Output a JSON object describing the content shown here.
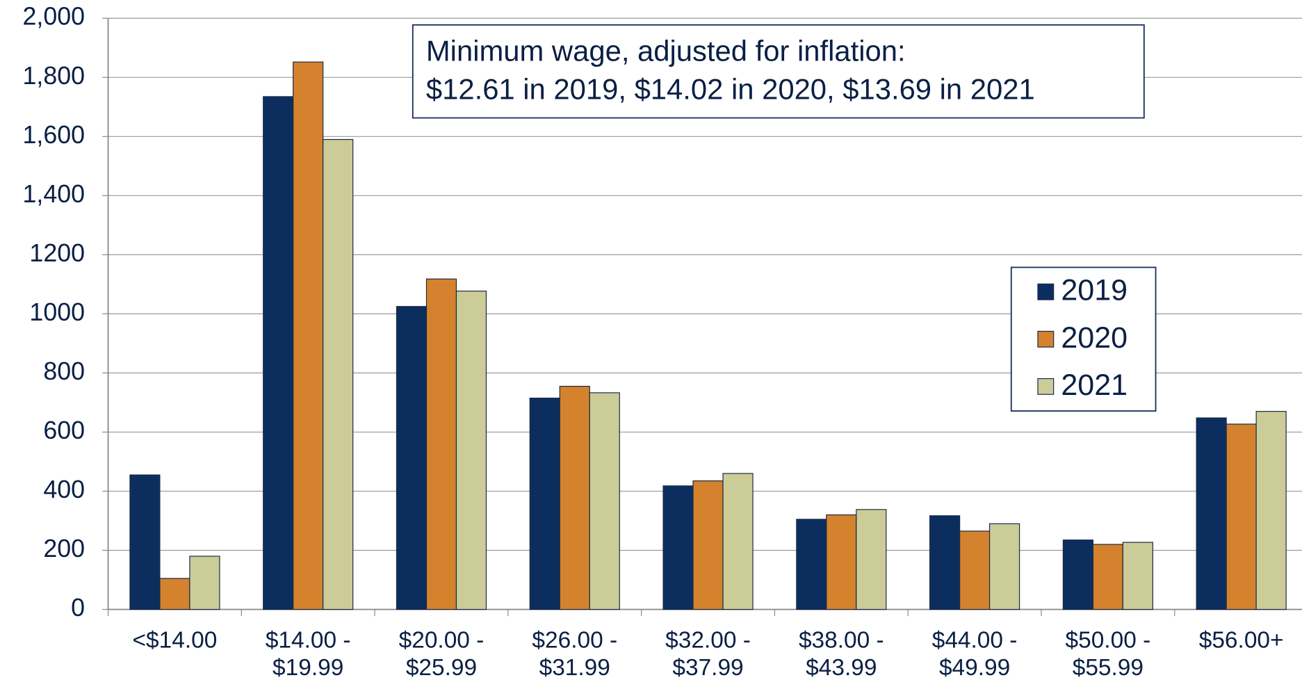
{
  "chart_data": {
    "type": "bar",
    "annotation": [
      "Minimum wage, adjusted for inflation:",
      "$12.61 in 2019, $14.02 in 2020, $13.69 in 2021"
    ],
    "categories": [
      "<$14.00",
      "$14.00 -\n$19.99",
      "$20.00 -\n$25.99",
      "$26.00 -\n$31.99",
      "$32.00 -\n$37.99",
      "$38.00 -\n$43.99",
      "$44.00 -\n$49.99",
      "$50.00 -\n$55.99",
      "$56.00+"
    ],
    "series": [
      {
        "name": "2019",
        "color": "#0c2e5f",
        "values": [
          455,
          1735,
          1025,
          715,
          418,
          305,
          317,
          235,
          648
        ]
      },
      {
        "name": "2020",
        "color": "#d4822d",
        "values": [
          105,
          1852,
          1118,
          755,
          435,
          320,
          265,
          220,
          627
        ]
      },
      {
        "name": "2021",
        "color": "#cccc99",
        "values": [
          180,
          1590,
          1077,
          733,
          460,
          338,
          290,
          227,
          670
        ]
      }
    ],
    "ylim": [
      0,
      2000
    ],
    "yticks": [
      0,
      200,
      400,
      600,
      800,
      1000,
      1200,
      {
        "value": 1400,
        "label": "1,400"
      },
      {
        "value": 1600,
        "label": "1,600"
      },
      {
        "value": 1800,
        "label": "1,800"
      },
      {
        "value": 2000,
        "label": "2,000"
      }
    ],
    "grid": true,
    "legend": "right"
  }
}
